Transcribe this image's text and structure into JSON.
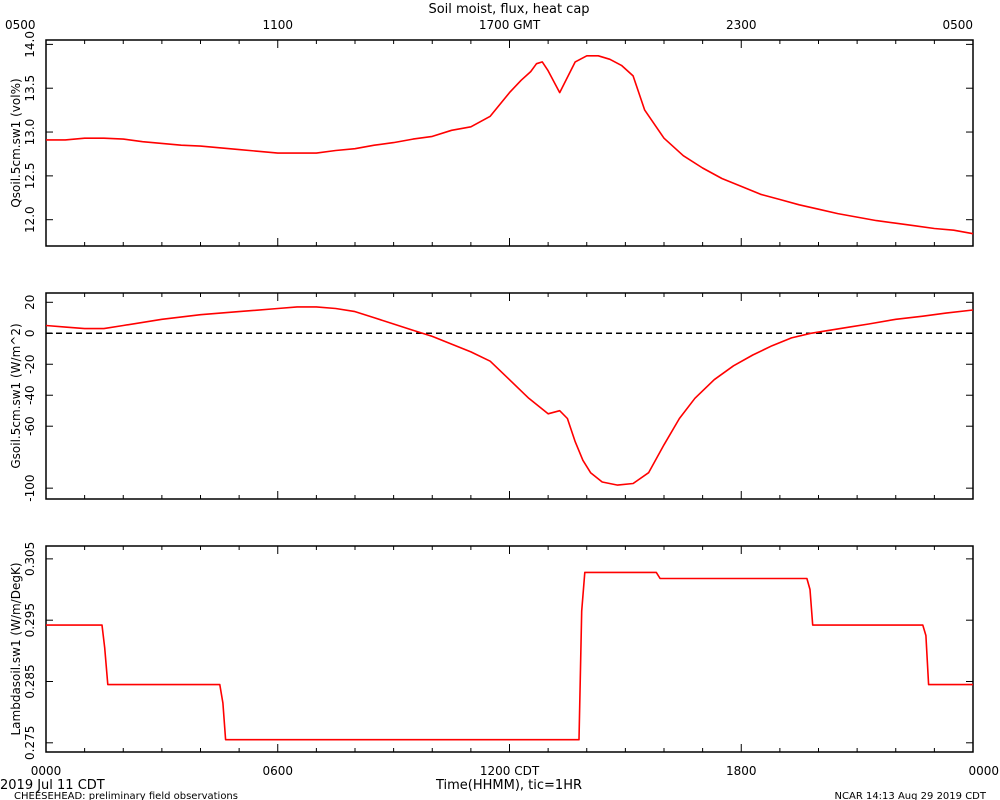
{
  "figure": {
    "title": "Soil moist, flux, heat cap",
    "top_axis_ticks": [
      "0500",
      "1100",
      "1700 GMT",
      "2300",
      "0500"
    ],
    "bottom_axis_ticks": [
      "0000",
      "0600",
      "1200 CDT",
      "1800",
      "0000"
    ],
    "xlabel": "Time(HHMM), tic=1HR",
    "date_label": "2019 Jul 11 CDT",
    "footer_left": "CHEESEHEAD: preliminary field observations",
    "footer_right": "NCAR 14:13 Aug 29 2019 CDT",
    "line_color": "#ff0000"
  },
  "chart_data": [
    {
      "type": "line",
      "title": "",
      "xlabel": "Time(HHMM), tic=1HR",
      "ylabel": "Qsoil.5cm.sw1 (vol%)",
      "xlim": [
        0,
        24
      ],
      "ylim": [
        11.7,
        14.05
      ],
      "yticks": [
        12.0,
        12.5,
        13.0,
        13.5,
        14.0
      ],
      "ytick_labels": [
        "12.0",
        "12.5",
        "13.0",
        "13.5",
        "14.0"
      ],
      "series": [
        {
          "x": [
            0,
            0.5,
            1,
            1.5,
            2,
            2.5,
            3,
            3.5,
            4,
            4.5,
            5,
            5.5,
            6,
            6.5,
            7,
            7.5,
            8,
            8.5,
            9,
            9.5,
            10,
            10.5,
            11,
            11.5,
            12,
            12.3,
            12.55,
            12.7,
            12.85,
            13,
            13.3,
            13.7,
            14,
            14.3,
            14.6,
            14.9,
            15.2,
            15.5,
            16,
            16.5,
            17,
            17.5,
            18,
            18.5,
            19,
            19.5,
            20,
            20.5,
            21,
            21.5,
            22,
            22.5,
            23,
            23.5,
            24
          ],
          "values": [
            12.91,
            12.91,
            12.93,
            12.93,
            12.92,
            12.89,
            12.87,
            12.85,
            12.84,
            12.82,
            12.8,
            12.78,
            12.76,
            12.76,
            12.76,
            12.79,
            12.81,
            12.85,
            12.88,
            12.92,
            12.95,
            13.02,
            13.06,
            13.18,
            13.45,
            13.59,
            13.69,
            13.78,
            13.8,
            13.7,
            13.45,
            13.8,
            13.87,
            13.87,
            13.83,
            13.76,
            13.64,
            13.25,
            12.93,
            12.73,
            12.59,
            12.47,
            12.38,
            12.29,
            12.23,
            12.17,
            12.12,
            12.07,
            12.03,
            11.99,
            11.96,
            11.93,
            11.9,
            11.88,
            11.84
          ]
        }
      ]
    },
    {
      "type": "line",
      "title": "",
      "xlabel": "Time(HHMM), tic=1HR",
      "ylabel": "Gsoil.5cm.sw1 (W/m^2)",
      "xlim": [
        0,
        24
      ],
      "ylim": [
        -107,
        26
      ],
      "yticks": [
        -100,
        -60,
        -40,
        -20,
        0,
        20
      ],
      "ytick_labels": [
        "-100",
        "-60",
        "-40",
        "-20",
        "0",
        "20"
      ],
      "reference_line": 0,
      "series": [
        {
          "x": [
            0,
            0.5,
            1,
            1.5,
            2,
            3,
            4,
            5,
            6,
            6.5,
            7,
            7.5,
            8,
            8.5,
            9,
            9.5,
            10,
            10.5,
            11,
            11.5,
            12,
            12.5,
            13,
            13.3,
            13.5,
            13.7,
            13.9,
            14.1,
            14.4,
            14.8,
            15.2,
            15.6,
            16,
            16.4,
            16.8,
            17.3,
            17.8,
            18.3,
            18.8,
            19.3,
            19.8,
            20.3,
            20.8,
            21.3,
            22,
            22.7,
            23.3,
            24
          ],
          "values": [
            5,
            4,
            3,
            3,
            5,
            9,
            12,
            14,
            16,
            17,
            17,
            16,
            14,
            10,
            6,
            2,
            -2,
            -7,
            -12,
            -18,
            -30,
            -42,
            -52,
            -50,
            -55,
            -70,
            -82,
            -90,
            -96,
            -98,
            -97,
            -90,
            -72,
            -55,
            -42,
            -30,
            -21,
            -14,
            -8,
            -3,
            0,
            2,
            4,
            6,
            9,
            11,
            13,
            15
          ]
        }
      ]
    },
    {
      "type": "line",
      "title": "",
      "xlabel": "Time(HHMM), tic=1HR",
      "ylabel": "Lambdasoil.sw1 (W/m/DegK)",
      "xlim": [
        0,
        24
      ],
      "ylim": [
        0.2735,
        0.3071
      ],
      "yticks": [
        0.275,
        0.285,
        0.295,
        0.305
      ],
      "ytick_labels": [
        "0.275",
        "0.285",
        "0.295",
        "0.305"
      ],
      "series": [
        {
          "x": [
            0,
            1.45,
            1.52,
            1.6,
            4.5,
            4.58,
            4.65,
            13.8,
            13.87,
            13.95,
            15.0,
            15.8,
            15.9,
            19.7,
            19.78,
            19.85,
            22.7,
            22.78,
            22.85,
            24
          ],
          "values": [
            0.2942,
            0.2942,
            0.2905,
            0.2845,
            0.2845,
            0.2815,
            0.2755,
            0.2755,
            0.2965,
            0.3028,
            0.3028,
            0.3028,
            0.3018,
            0.3018,
            0.3,
            0.2942,
            0.2942,
            0.2925,
            0.2845,
            0.2845
          ]
        }
      ]
    }
  ]
}
